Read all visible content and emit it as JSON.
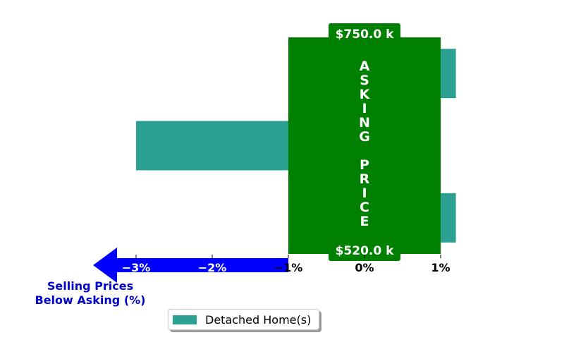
{
  "colors": {
    "bar": "#2ca093",
    "banner": "#008000",
    "arrow": "#0000ff",
    "arrow_text": "#0000cc",
    "text_light": "#ffffff",
    "text_dark": "#000000"
  },
  "chart_data": {
    "type": "bar",
    "orientation": "horizontal",
    "categories": [
      "",
      "",
      ""
    ],
    "series": [
      {
        "name": "Detached Home(s)",
        "values": [
          1.2,
          -3.0,
          1.2
        ]
      }
    ],
    "xlim": [
      -3.6,
      1.6
    ],
    "xticks": [
      {
        "value": -3,
        "label": "−3%"
      },
      {
        "value": -2,
        "label": "−2%"
      },
      {
        "value": -1,
        "label": "−1%"
      },
      {
        "value": 0,
        "label": "0%"
      },
      {
        "value": 1,
        "label": "1%"
      }
    ],
    "asking_band": [
      -1,
      1
    ],
    "asking_banner": "ASKING PRICE",
    "price_top": "$750.0 k",
    "price_bottom": "$520.0 k",
    "arrow_caption": [
      "Selling Prices",
      "Below Asking (%)"
    ],
    "legend": {
      "placement": "bottom-left",
      "entries": [
        "Detached Home(s)"
      ]
    },
    "grid": false,
    "title": "",
    "xlabel": "",
    "ylabel": ""
  }
}
